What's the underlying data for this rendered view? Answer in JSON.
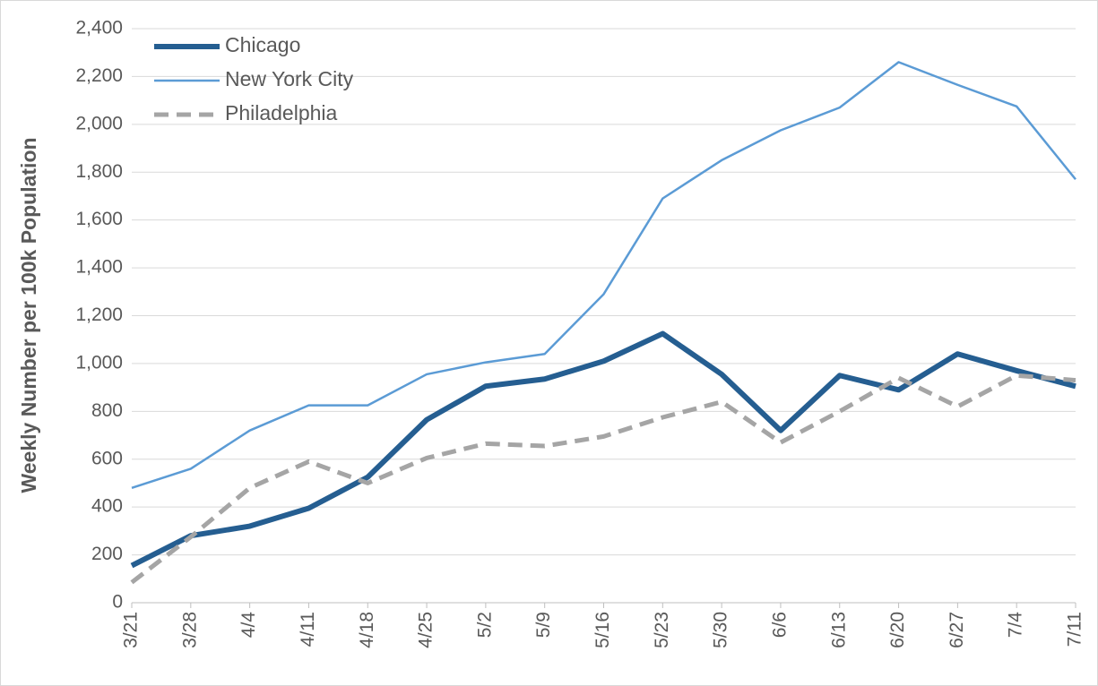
{
  "chart_data": {
    "type": "line",
    "y_label": "Weekly Number per 100k Population",
    "categories": [
      "3/21",
      "3/28",
      "4/4",
      "4/11",
      "4/18",
      "4/25",
      "5/2",
      "5/9",
      "5/16",
      "5/23",
      "5/30",
      "6/6",
      "6/13",
      "6/20",
      "6/27",
      "7/4",
      "7/11"
    ],
    "series": [
      {
        "name": "Chicago",
        "color": "#255e91",
        "width": 6,
        "dash": "none",
        "values": [
          155,
          280,
          320,
          395,
          525,
          765,
          905,
          935,
          1010,
          1125,
          955,
          720,
          950,
          890,
          1040,
          970,
          905
        ]
      },
      {
        "name": "New York City",
        "color": "#5b9bd5",
        "width": 2.5,
        "dash": "none",
        "values": [
          480,
          560,
          720,
          825,
          825,
          955,
          1005,
          1040,
          1290,
          1690,
          1850,
          1975,
          2070,
          2260,
          2165,
          2075,
          1770
        ]
      },
      {
        "name": "Philadelphia",
        "color": "#a5a5a5",
        "width": 5,
        "dash": "16 9",
        "values": [
          85,
          275,
          480,
          590,
          500,
          605,
          665,
          655,
          695,
          775,
          840,
          670,
          800,
          940,
          820,
          950,
          930
        ]
      }
    ],
    "ylim": [
      0,
      2400
    ],
    "yticks": [
      0,
      200,
      400,
      600,
      800,
      {
        "value": 1000,
        "label": "1,000"
      },
      {
        "value": 1200,
        "label": "1,200"
      },
      {
        "value": 1400,
        "label": "1,400"
      },
      {
        "value": 1600,
        "label": "1,600"
      },
      {
        "value": 1800,
        "label": "1,800"
      },
      {
        "value": 2000,
        "label": "2,000"
      },
      {
        "value": 2200,
        "label": "2,200"
      },
      {
        "value": 2400,
        "label": "2,400"
      }
    ],
    "grid": true,
    "legend": "top-left"
  }
}
